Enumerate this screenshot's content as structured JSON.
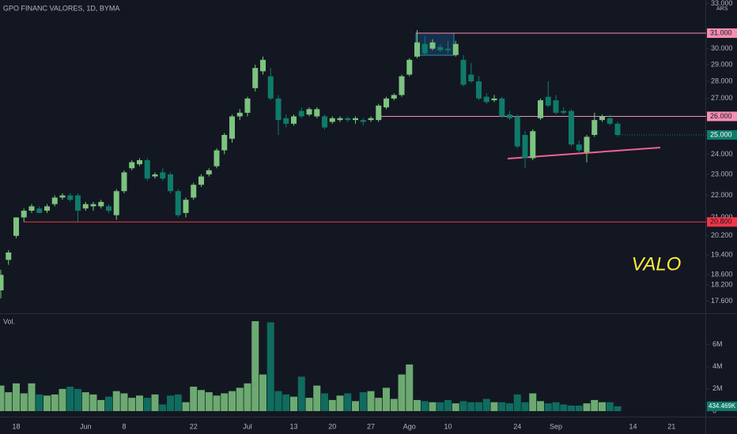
{
  "chart_data": {
    "type": "candlestick",
    "title": "GPO FINANC VALORES, 1D, BYMA",
    "currency": "ARS",
    "volume_title": "Vol.",
    "annotation": "VALO",
    "log_scale": true,
    "up_color": "#7cc47f",
    "down_color": "#0f7b6a",
    "categories": [
      null,
      null,
      "18",
      null,
      null,
      null,
      null,
      null,
      null,
      null,
      null,
      "Jun",
      null,
      null,
      null,
      null,
      "8",
      null,
      null,
      null,
      null,
      null,
      null,
      null,
      null,
      "22",
      null,
      null,
      null,
      null,
      null,
      null,
      "Jul",
      null,
      null,
      null,
      null,
      null,
      "13",
      null,
      null,
      null,
      null,
      "20",
      null,
      null,
      null,
      null,
      "27",
      null,
      null,
      null,
      null,
      "Ago",
      null,
      null,
      null,
      null,
      "10",
      null,
      null,
      null,
      null,
      null,
      null,
      null,
      null,
      "24",
      null,
      null,
      null,
      null,
      "Sep",
      null,
      null,
      null,
      null,
      null,
      null,
      null,
      null,
      null,
      "14",
      null,
      null,
      null,
      null,
      "21",
      null
    ],
    "open": [
      18.0,
      19.2,
      20.2,
      21.0,
      21.3,
      21.4,
      21.3,
      21.6,
      21.9,
      22.0,
      22.0,
      21.4,
      21.5,
      21.5,
      21.5,
      21.1,
      22.2,
      23.3,
      23.5,
      23.7,
      22.9,
      23.1,
      23.0,
      22.2,
      21.2,
      21.9,
      22.5,
      23.0,
      23.4,
      24.2,
      24.8,
      26.0,
      26.2,
      27.6,
      28.6,
      28.3,
      27.0,
      25.9,
      25.6,
      26.3,
      26.1,
      26.0,
      26.0,
      25.7,
      25.8,
      25.9,
      25.8,
      25.8,
      25.8,
      25.8,
      26.5,
      27.0,
      27.2,
      28.4,
      29.5,
      30.3,
      30.0,
      30.1,
      30.0,
      29.6,
      29.3,
      28.4,
      28.0,
      27.1,
      26.9,
      27.0,
      26.1,
      26.0,
      25.0,
      23.8,
      25.9,
      27.1,
      26.9,
      26.3,
      26.3,
      24.5,
      24.1,
      25.0,
      25.8,
      25.9,
      25.6,
      null,
      null,
      null,
      null,
      null,
      null,
      null,
      null
    ],
    "high": [
      18.8,
      19.6,
      21.0,
      21.4,
      21.6,
      21.5,
      21.6,
      22.0,
      22.1,
      22.1,
      22.1,
      21.7,
      21.7,
      21.8,
      21.6,
      22.3,
      23.2,
      23.7,
      23.8,
      23.8,
      23.1,
      23.3,
      23.1,
      22.3,
      21.9,
      22.6,
      23.0,
      23.3,
      24.3,
      25.1,
      26.1,
      26.4,
      27.1,
      29.0,
      29.5,
      28.8,
      27.2,
      26.1,
      26.1,
      26.5,
      26.5,
      26.5,
      26.1,
      26.0,
      26.0,
      26.0,
      26.0,
      25.9,
      26.0,
      26.7,
      27.1,
      27.3,
      28.4,
      29.4,
      31.2,
      30.8,
      30.6,
      30.3,
      30.5,
      30.5,
      29.6,
      29.1,
      28.3,
      27.3,
      27.2,
      27.1,
      26.3,
      26.1,
      25.2,
      25.3,
      27.0,
      28.0,
      27.2,
      26.5,
      26.4,
      24.7,
      25.0,
      26.2,
      26.1,
      26.1,
      25.7,
      null,
      null,
      null,
      null,
      null,
      null,
      null,
      null
    ],
    "low": [
      17.7,
      19.0,
      20.1,
      20.8,
      21.2,
      21.2,
      21.2,
      21.5,
      21.8,
      21.7,
      20.8,
      21.3,
      21.3,
      21.4,
      21.2,
      20.9,
      22.1,
      23.2,
      23.4,
      22.7,
      22.8,
      22.7,
      22.1,
      21.0,
      21.0,
      21.8,
      22.4,
      22.9,
      23.3,
      24.0,
      24.6,
      25.8,
      26.0,
      27.4,
      28.4,
      26.9,
      25.0,
      25.4,
      25.5,
      25.9,
      26.0,
      25.9,
      25.3,
      25.6,
      25.7,
      25.7,
      25.6,
      25.5,
      25.7,
      25.7,
      26.4,
      26.9,
      27.1,
      28.3,
      29.4,
      29.6,
      29.9,
      29.8,
      29.7,
      29.5,
      27.7,
      27.9,
      26.9,
      26.7,
      26.8,
      25.9,
      25.8,
      24.3,
      23.3,
      23.7,
      25.8,
      26.5,
      26.1,
      26.1,
      24.4,
      24.1,
      23.6,
      24.9,
      25.7,
      25.5,
      24.9,
      null,
      null,
      null,
      null,
      null,
      null,
      null,
      null
    ],
    "close": [
      18.6,
      19.5,
      21.0,
      21.3,
      21.5,
      21.2,
      21.5,
      21.9,
      22.0,
      21.8,
      21.3,
      21.6,
      21.6,
      21.7,
      21.3,
      22.2,
      23.1,
      23.6,
      23.7,
      22.8,
      23.0,
      22.8,
      22.2,
      21.1,
      21.8,
      22.5,
      22.9,
      23.2,
      24.2,
      25.0,
      26.0,
      26.2,
      27.0,
      28.8,
      29.3,
      27.0,
      25.8,
      25.6,
      26.0,
      26.0,
      26.4,
      26.4,
      25.4,
      25.9,
      25.9,
      25.8,
      25.9,
      25.7,
      25.9,
      26.6,
      27.0,
      27.2,
      28.3,
      29.3,
      30.4,
      29.7,
      30.4,
      29.9,
      29.9,
      30.3,
      27.8,
      28.0,
      27.0,
      26.8,
      27.0,
      26.0,
      25.9,
      24.4,
      23.8,
      25.2,
      26.9,
      26.6,
      26.2,
      26.2,
      24.5,
      24.2,
      24.9,
      25.8,
      26.0,
      25.6,
      25.0,
      null,
      null,
      null,
      null,
      null,
      null,
      null,
      null
    ],
    "volume": [
      2300000,
      1700000,
      2500000,
      1600000,
      2500000,
      1500000,
      1400000,
      1500000,
      2000000,
      2200000,
      2000000,
      1700000,
      1500000,
      1000000,
      1300000,
      1800000,
      1600000,
      1200000,
      1400000,
      1200000,
      1500000,
      600000,
      1400000,
      1500000,
      800000,
      2200000,
      1900000,
      1700000,
      1400000,
      1600000,
      1800000,
      2100000,
      2500000,
      8100000,
      3300000,
      8000000,
      1800000,
      1500000,
      1300000,
      3100000,
      1200000,
      2300000,
      1600000,
      1000000,
      1400000,
      1600000,
      900000,
      1700000,
      1800000,
      1200000,
      2100000,
      1100000,
      3300000,
      4200000,
      1000000,
      900000,
      800000,
      800000,
      1000000,
      700000,
      900000,
      800000,
      800000,
      1100000,
      800000,
      800000,
      700000,
      1500000,
      800000,
      1600000,
      900000,
      700000,
      800000,
      600000,
      500000,
      500000,
      700000,
      1000000,
      800000,
      800000,
      434469,
      null,
      null,
      null,
      null,
      null,
      null,
      null,
      null
    ],
    "ylim": [
      17.15,
      33.25
    ],
    "yticks": [
      {
        "value": 33,
        "label": "33.000"
      },
      {
        "value": 30,
        "label": "30.000"
      },
      {
        "value": 29,
        "label": "29.000"
      },
      {
        "value": 28,
        "label": "28.000"
      },
      {
        "value": 27,
        "label": "27.000"
      },
      {
        "value": 24,
        "label": "24.000"
      },
      {
        "value": 23,
        "label": "23.000"
      },
      {
        "value": 22,
        "label": "22.000"
      },
      {
        "value": 21,
        "label": "21.000"
      },
      {
        "value": 20.2,
        "label": "20.200"
      },
      {
        "value": 19.4,
        "label": "19.400"
      },
      {
        "value": 18.6,
        "label": "18.600"
      },
      {
        "value": 18.2,
        "label": "18.200"
      },
      {
        "value": 17.6,
        "label": "17.600"
      }
    ],
    "price_lines": [
      {
        "value": 31,
        "label": "31.000",
        "color": "#f48fb1"
      },
      {
        "value": 26,
        "label": "26.000",
        "color": "#f48fb1"
      },
      {
        "value": 20.8,
        "label": "20.800",
        "color": "#f23645"
      }
    ],
    "last_price_label": "25.000",
    "volume_ylim": [
      0,
      8600000
    ],
    "volume_yticks": [
      {
        "value": 6000000,
        "label": "6M"
      },
      {
        "value": 4000000,
        "label": "4M"
      },
      {
        "value": 2000000,
        "label": "2M"
      },
      0
    ],
    "last_volume_label": "434.469K"
  }
}
